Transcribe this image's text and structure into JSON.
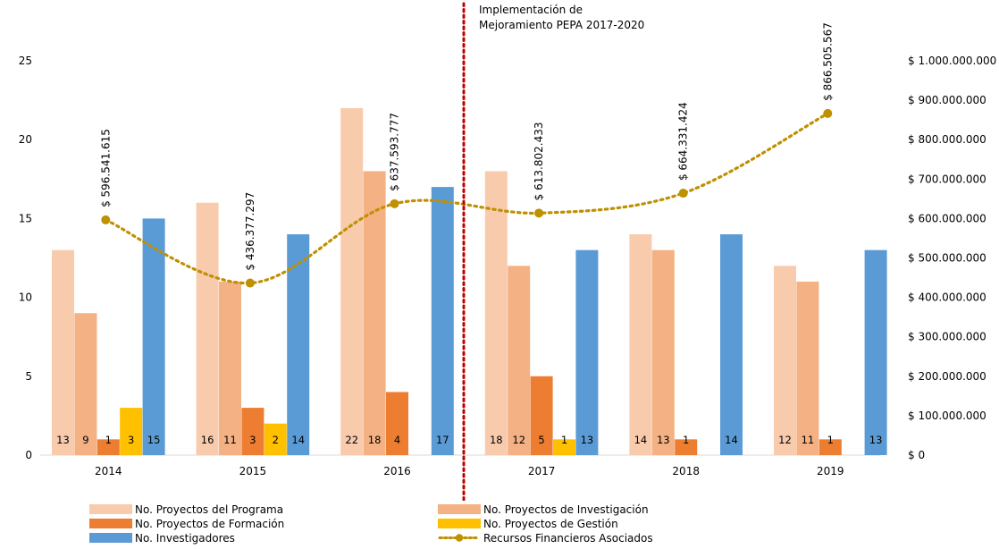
{
  "chart_data": {
    "type": "bar",
    "categories": [
      "2014",
      "2015",
      "2016",
      "2017",
      "2018",
      "2019"
    ],
    "series": [
      {
        "name": "No. Proyectos del Programa",
        "color": "#F8CBAD",
        "values": [
          13,
          16,
          22,
          18,
          14,
          12
        ]
      },
      {
        "name": "No. Proyectos de Investigación",
        "color": "#F4B183",
        "values": [
          9,
          11,
          18,
          12,
          13,
          11
        ]
      },
      {
        "name": "No. Proyectos de Formación",
        "color": "#ED7D31",
        "values": [
          1,
          3,
          4,
          5,
          1,
          1
        ]
      },
      {
        "name": "No. Proyectos de Gestión",
        "color": "#FFC000",
        "values": [
          3,
          2,
          null,
          1,
          null,
          null
        ]
      },
      {
        "name": "No. Investigadores",
        "color": "#5B9BD5",
        "values": [
          15,
          14,
          17,
          13,
          14,
          13
        ]
      }
    ],
    "line_series": {
      "name": "Recursos Financieros Asociados",
      "color": "#BF9000",
      "axis": "right",
      "values": [
        596541615,
        436377297,
        637593777,
        613802433,
        664331424,
        866505567
      ],
      "labels": [
        "$ 596.541.615",
        "$ 436.377.297",
        "$ 637.593.777",
        "$ 613.802.433",
        "$ 664.331.424",
        "$ 866.505.567"
      ]
    },
    "bar_labels": [
      [
        "13",
        "9",
        "1",
        "3",
        "15"
      ],
      [
        "16",
        "11",
        "3",
        "2",
        "14"
      ],
      [
        "22",
        "18",
        "4",
        "",
        "17"
      ],
      [
        "18",
        "12",
        "5",
        "1",
        "13"
      ],
      [
        "14",
        "13",
        "1",
        "",
        "14"
      ],
      [
        "12",
        "11",
        "1",
        "",
        "13"
      ]
    ],
    "y_left": {
      "min": 0,
      "max": 25,
      "ticks": [
        "0",
        "5",
        "10",
        "15",
        "20",
        "25"
      ]
    },
    "y_right": {
      "min": 0,
      "max": 1000000000,
      "ticks": [
        "$ 0",
        "$ 100.000.000",
        "$ 200.000.000",
        "$ 300.000.000",
        "$ 400.000.000",
        "$ 500.000.000",
        "$ 600.000.000",
        "$ 700.000.000",
        "$ 800.000.000",
        "$ 900.000.000",
        "$ 1.000.000.000"
      ]
    },
    "annotation": {
      "line1": "Implementación de",
      "line2": "Mejoramiento PEPA 2017-2020",
      "color": "#C00000"
    },
    "title": "",
    "xlabel": "",
    "ylabel": "",
    "grid": false,
    "legend_position": "bottom"
  }
}
